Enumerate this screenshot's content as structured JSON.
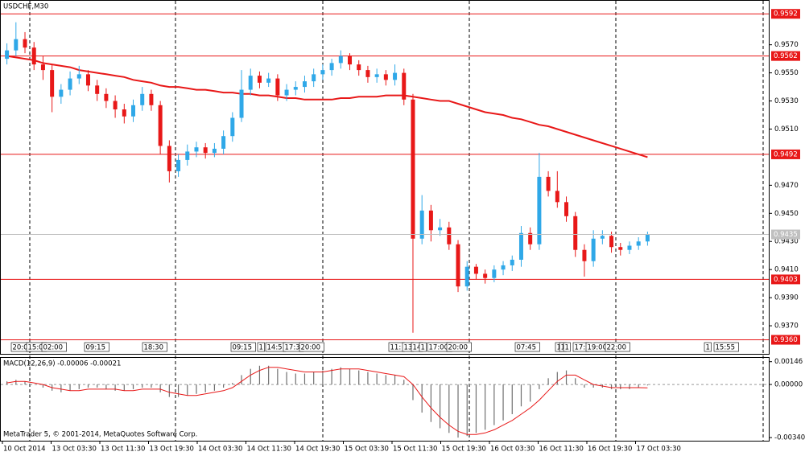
{
  "chart_data": [
    {
      "type": "candlestick",
      "title": "USDCHF,M30",
      "up_color": "#2fa8e8",
      "down_color": "#e81818",
      "open": [
        0.956,
        0.9566,
        0.9574,
        0.9568,
        0.9556,
        0.9552,
        0.9533,
        0.9538,
        0.9546,
        0.9549,
        0.9541,
        0.9535,
        0.953,
        0.9524,
        0.9519,
        0.9527,
        0.9535,
        0.9527,
        0.9498,
        0.948,
        0.9488,
        0.9494,
        0.9497,
        0.9493,
        0.9496,
        0.9505,
        0.9518,
        0.9538,
        0.9548,
        0.9543,
        0.9546,
        0.9534,
        0.9538,
        0.954,
        0.9544,
        0.9549,
        0.9552,
        0.9557,
        0.9562,
        0.9556,
        0.9552,
        0.9547,
        0.9549,
        0.9545,
        0.955,
        0.9531,
        0.9432,
        0.9452,
        0.9438,
        0.944,
        0.9428,
        0.9398,
        0.9412,
        0.9407,
        0.9404,
        0.941,
        0.9413,
        0.9417,
        0.9436,
        0.9428,
        0.9476,
        0.9466,
        0.9458,
        0.9448,
        0.9424,
        0.9416,
        0.9432,
        0.9434,
        0.9426,
        0.9424,
        0.9427,
        0.943
      ],
      "high": [
        0.9571,
        0.9586,
        0.9579,
        0.9572,
        0.9562,
        0.9556,
        0.9542,
        0.9551,
        0.9555,
        0.9552,
        0.9545,
        0.9539,
        0.9534,
        0.9528,
        0.9531,
        0.954,
        0.9538,
        0.953,
        0.9502,
        0.9492,
        0.9499,
        0.9501,
        0.95,
        0.95,
        0.9509,
        0.9522,
        0.9552,
        0.9553,
        0.9551,
        0.955,
        0.9549,
        0.9542,
        0.9544,
        0.9548,
        0.9553,
        0.9556,
        0.956,
        0.9566,
        0.9564,
        0.9559,
        0.9555,
        0.9553,
        0.9552,
        0.9556,
        0.9553,
        0.9535,
        0.9463,
        0.9456,
        0.9446,
        0.9444,
        0.9431,
        0.9416,
        0.9414,
        0.941,
        0.9413,
        0.9416,
        0.942,
        0.9441,
        0.944,
        0.9493,
        0.948,
        0.948,
        0.9462,
        0.9451,
        0.9428,
        0.9438,
        0.9438,
        0.9437,
        0.9429,
        0.943,
        0.9433,
        0.9437
      ],
      "low": [
        0.9556,
        0.9562,
        0.9564,
        0.9552,
        0.9545,
        0.9522,
        0.9528,
        0.9534,
        0.9542,
        0.9537,
        0.953,
        0.9525,
        0.9518,
        0.9514,
        0.9515,
        0.9523,
        0.9523,
        0.9492,
        0.9472,
        0.9476,
        0.9484,
        0.949,
        0.9489,
        0.949,
        0.9492,
        0.9501,
        0.9515,
        0.9534,
        0.9539,
        0.954,
        0.953,
        0.953,
        0.9534,
        0.9536,
        0.954,
        0.9545,
        0.9548,
        0.9553,
        0.9552,
        0.9548,
        0.9543,
        0.9543,
        0.9541,
        0.9541,
        0.9527,
        0.9365,
        0.9428,
        0.943,
        0.9434,
        0.9424,
        0.9394,
        0.9395,
        0.9403,
        0.94,
        0.9401,
        0.9406,
        0.9409,
        0.9412,
        0.9424,
        0.9424,
        0.9462,
        0.9454,
        0.9444,
        0.9419,
        0.9405,
        0.9412,
        0.9428,
        0.9422,
        0.942,
        0.9421,
        0.9424,
        0.9427
      ],
      "close": [
        0.9566,
        0.9574,
        0.9568,
        0.9556,
        0.9552,
        0.9533,
        0.9538,
        0.9546,
        0.9549,
        0.9541,
        0.9535,
        0.953,
        0.9524,
        0.9519,
        0.9527,
        0.9535,
        0.9527,
        0.9498,
        0.948,
        0.9488,
        0.9494,
        0.9497,
        0.9493,
        0.9496,
        0.9505,
        0.9518,
        0.9538,
        0.9548,
        0.9543,
        0.9546,
        0.9534,
        0.9538,
        0.954,
        0.9544,
        0.9549,
        0.9552,
        0.9557,
        0.9562,
        0.9556,
        0.9552,
        0.9547,
        0.9549,
        0.9545,
        0.955,
        0.9531,
        0.9432,
        0.9452,
        0.9438,
        0.944,
        0.9428,
        0.9398,
        0.9412,
        0.9407,
        0.9404,
        0.941,
        0.9413,
        0.9417,
        0.9436,
        0.9428,
        0.9476,
        0.9466,
        0.9458,
        0.9448,
        0.9424,
        0.9416,
        0.9432,
        0.9434,
        0.9426,
        0.9424,
        0.9427,
        0.943,
        0.9435
      ],
      "moving_average": {
        "color": "#e81818",
        "values": [
          0.9562,
          0.9561,
          0.956,
          0.9559,
          0.9557,
          0.9556,
          0.9555,
          0.9554,
          0.9552,
          0.9551,
          0.955,
          0.9549,
          0.9548,
          0.9547,
          0.9545,
          0.9544,
          0.9543,
          0.9541,
          0.954,
          0.954,
          0.9539,
          0.9538,
          0.9538,
          0.9537,
          0.9536,
          0.9536,
          0.9535,
          0.9535,
          0.9534,
          0.9534,
          0.9533,
          0.9532,
          0.9532,
          0.9531,
          0.9531,
          0.9531,
          0.9531,
          0.9532,
          0.9532,
          0.9533,
          0.9533,
          0.9533,
          0.9534,
          0.9534,
          0.9534,
          0.9533,
          0.9532,
          0.9531,
          0.953,
          0.953,
          0.9528,
          0.9526,
          0.9524,
          0.9522,
          0.9521,
          0.952,
          0.9518,
          0.9517,
          0.9515,
          0.9513,
          0.9512,
          0.951,
          0.9508,
          0.9506,
          0.9504,
          0.9502,
          0.95,
          0.9498,
          0.9496,
          0.9494,
          0.9492,
          0.949
        ]
      },
      "levels": {
        "color": "#e81818",
        "values": [
          0.9592,
          0.9562,
          0.9492,
          0.9403,
          {
            "value": 0.936,
            "label": "0.9360"
          }
        ]
      },
      "current_price": {
        "color": "#c0c0c0",
        "value": 0.9435
      },
      "ylim": [
        0.935,
        0.9599
      ],
      "yticks": [
        {
          "value": 0.937,
          "label": "0.9370"
        },
        {
          "value": 0.939,
          "label": "0.9390"
        },
        {
          "value": 0.941,
          "label": "0.9410"
        },
        {
          "value": 0.943,
          "label": "0.9430"
        },
        {
          "value": 0.945,
          "label": "0.9450"
        },
        {
          "value": 0.947,
          "label": "0.9470"
        },
        {
          "value": 0.951,
          "label": "0.9510"
        },
        {
          "value": 0.953,
          "label": "0.9530"
        },
        {
          "value": 0.955,
          "label": "0.9550"
        },
        {
          "value": 0.957,
          "label": "0.9570"
        }
      ],
      "event_labels": [
        "20:0",
        "15:0",
        "02:00",
        "09:15",
        "18:30",
        "09:15",
        "1",
        "14:5",
        "17:3",
        "20:00",
        "11:",
        "13",
        "14",
        "1",
        "17:00",
        "20:00",
        "07:45",
        "1",
        "1",
        "1",
        "17:",
        "19:00",
        "22:00",
        "1",
        "15:55"
      ],
      "xlabels": [
        "10 Oct 2014",
        "13 Oct 03:30",
        "13 Oct 11:30",
        "13 Oct 19:30",
        "14 Oct 03:30",
        "14 Oct 11:30",
        "14 Oct 19:30",
        "15 Oct 03:30",
        "15 Oct 11:30",
        "15 Oct 19:30",
        "16 Oct 03:30",
        "16 Oct 11:30",
        "16 Oct 19:30",
        "17 Oct 03:30"
      ]
    },
    {
      "type": "macd",
      "title": "MACD(12,26,9) -0.00006 -0.00021",
      "histogram": {
        "color": "#707070",
        "values": [
          0.0002,
          0.0003,
          0.0002,
          0.0,
          -0.0002,
          -0.0004,
          -0.0005,
          -0.0004,
          -0.0003,
          -0.0002,
          -0.0002,
          -0.0003,
          -0.0004,
          -0.0004,
          -0.0003,
          -0.0002,
          -0.0002,
          -0.0005,
          -0.0008,
          -0.0008,
          -0.0007,
          -0.0006,
          -0.0005,
          -0.0004,
          -0.0002,
          0.0001,
          0.0006,
          0.001,
          0.0012,
          0.0012,
          0.001,
          0.0008,
          0.0007,
          0.0007,
          0.0008,
          0.0009,
          0.001,
          0.0011,
          0.001,
          0.0009,
          0.0008,
          0.0007,
          0.0006,
          0.0006,
          0.0003,
          -0.001,
          -0.0018,
          -0.0024,
          -0.0028,
          -0.0031,
          -0.0034,
          -0.0033,
          -0.0031,
          -0.0029,
          -0.0026,
          -0.0023,
          -0.0019,
          -0.0014,
          -0.0011,
          -0.0003,
          0.0004,
          0.0008,
          0.0009,
          0.0004,
          -0.0002,
          -0.0002,
          -0.0002,
          -0.0003,
          -0.0003,
          -0.0003,
          -0.0002,
          -6e-05
        ]
      },
      "signal": {
        "color": "#e81818",
        "values": [
          0.0001,
          0.0002,
          0.0002,
          0.0001,
          0.0,
          -0.0002,
          -0.0003,
          -0.0004,
          -0.0004,
          -0.0003,
          -0.0003,
          -0.0003,
          -0.0003,
          -0.0004,
          -0.0004,
          -0.0003,
          -0.0003,
          -0.0003,
          -0.0005,
          -0.0006,
          -0.0007,
          -0.0007,
          -0.0006,
          -0.0005,
          -0.0004,
          -0.0002,
          0.0002,
          0.0006,
          0.0009,
          0.0011,
          0.0011,
          0.001,
          0.0009,
          0.0008,
          0.0008,
          0.0008,
          0.0009,
          0.001,
          0.001,
          0.001,
          0.0009,
          0.0008,
          0.0007,
          0.0006,
          0.0005,
          0.0,
          -0.0008,
          -0.0015,
          -0.0021,
          -0.0026,
          -0.003,
          -0.0032,
          -0.0032,
          -0.0031,
          -0.0029,
          -0.0026,
          -0.0023,
          -0.0019,
          -0.0015,
          -0.001,
          -0.0004,
          0.0002,
          0.0006,
          0.0006,
          0.0003,
          0.0,
          -0.0001,
          -0.0002,
          -0.0002,
          -0.0002,
          -0.0002,
          -0.00021
        ]
      },
      "ylim": [
        -0.0036,
        0.0016
      ],
      "yticks": [
        0.00146,
        {
          "value": 0,
          "label": "0.00000"
        },
        {
          "value": -0.0034,
          "label": "-0.00340"
        }
      ]
    }
  ],
  "footer": "MetaTrader 5, © 2001-2014, MetaQuotes Software Corp."
}
